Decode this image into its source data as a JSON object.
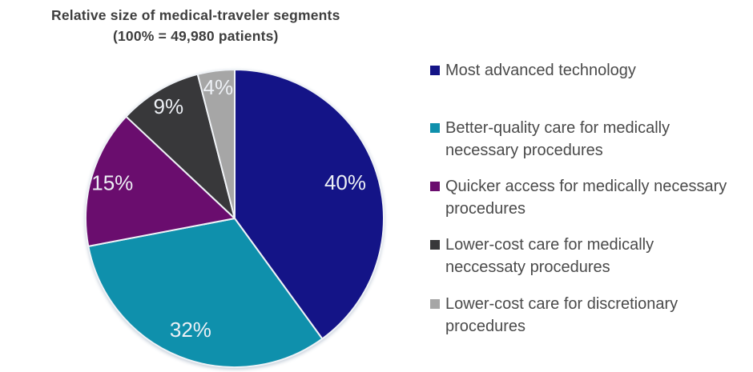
{
  "title": {
    "line1": "Relative size of medical-traveler segments",
    "line2": "(100% = 49,980 patients)"
  },
  "chart_data": {
    "type": "pie",
    "title": "Relative size of medical-traveler segments",
    "subtitle": "(100% = 49,980 patients)",
    "total_patients": "49,980",
    "unit": "%",
    "legend_position": "right",
    "start_angle": "12 o'clock, clockwise",
    "slice_label_color": "#EDF0F5",
    "slice_border_color": "#F0F3F7",
    "segments": [
      {
        "label": "Most advanced technology",
        "value": 40,
        "display": "40%",
        "color": "#141487"
      },
      {
        "label": "Better-quality care for medically necessary procedures",
        "value": 32,
        "display": "32%",
        "color": "#0F90AC"
      },
      {
        "label": "Quicker access for medically necessary procedures",
        "value": 15,
        "display": "15%",
        "color": "#6A0D6E"
      },
      {
        "label": "Lower-cost care for medically neccessaty procedures",
        "value": 9,
        "display": "9%",
        "color": "#38383A"
      },
      {
        "label": "Lower-cost care for discretionary procedures",
        "value": 4,
        "display": "4%",
        "color": "#A6A6A6"
      }
    ]
  }
}
